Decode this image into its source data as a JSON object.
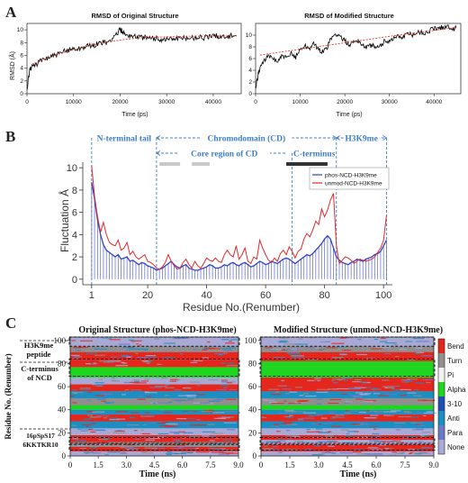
{
  "panels": {
    "a": {
      "letter": "A"
    },
    "b": {
      "letter": "B"
    },
    "c": {
      "letter": "C"
    }
  },
  "chart_data": [
    {
      "type": "line",
      "title": "RMSD of Original Structure",
      "xlabel": "Time (ps)",
      "ylabel": "RMSD (Å)",
      "xlim": [
        0,
        46000
      ],
      "ylim": [
        0,
        11
      ],
      "xticks": [
        "0",
        "10000",
        "20000",
        "30000",
        "40000"
      ],
      "yticks": [
        "0",
        "2",
        "4",
        "6",
        "8",
        "10"
      ],
      "series": [
        {
          "kind": "rmsd",
          "color": "#000000",
          "points": [
            [
              0,
              0.5
            ],
            [
              500,
              3.5
            ],
            [
              1000,
              4.3
            ],
            [
              2000,
              4.6
            ],
            [
              3000,
              5.1
            ],
            [
              4000,
              5.5
            ],
            [
              5000,
              5.8
            ],
            [
              6000,
              6.0
            ],
            [
              7000,
              6.2
            ],
            [
              8000,
              6.6
            ],
            [
              9000,
              6.9
            ],
            [
              10000,
              7.1
            ],
            [
              11000,
              7.0
            ],
            [
              12000,
              7.3
            ],
            [
              13000,
              7.5
            ],
            [
              14000,
              7.4
            ],
            [
              15000,
              7.8
            ],
            [
              16000,
              8.0
            ],
            [
              17000,
              7.9
            ],
            [
              18000,
              8.4
            ],
            [
              19000,
              9.2
            ],
            [
              20000,
              10.0
            ],
            [
              20500,
              9.8
            ],
            [
              21000,
              9.3
            ],
            [
              22000,
              9.2
            ],
            [
              23000,
              9.0
            ],
            [
              24000,
              8.9
            ],
            [
              25000,
              8.8
            ],
            [
              26000,
              8.6
            ],
            [
              27000,
              8.7
            ],
            [
              28000,
              8.6
            ],
            [
              29000,
              8.5
            ],
            [
              30000,
              8.6
            ],
            [
              31000,
              8.6
            ],
            [
              32000,
              8.7
            ],
            [
              33000,
              8.6
            ],
            [
              34000,
              8.7
            ],
            [
              35000,
              8.8
            ],
            [
              36000,
              8.8
            ],
            [
              37000,
              8.9
            ],
            [
              38000,
              8.8
            ],
            [
              39000,
              8.9
            ],
            [
              40000,
              9.0
            ],
            [
              41000,
              9.0
            ],
            [
              42000,
              8.9
            ],
            [
              43000,
              9.0
            ],
            [
              44000,
              9.1
            ],
            [
              45000,
              9.0
            ]
          ]
        },
        {
          "kind": "fit",
          "color": "#e03a2a",
          "points": [
            [
              1000,
              4.6
            ],
            [
              5000,
              5.8
            ],
            [
              10000,
              6.9
            ],
            [
              15000,
              7.8
            ],
            [
              20000,
              8.4
            ],
            [
              25000,
              8.8
            ],
            [
              30000,
              8.9
            ],
            [
              35000,
              9.0
            ],
            [
              40000,
              9.0
            ],
            [
              45000,
              9.1
            ]
          ]
        }
      ]
    },
    {
      "type": "line",
      "title": "RMSD of Modified Structure",
      "xlabel": "Time (ps)",
      "ylabel": "",
      "xlim": [
        0,
        46000
      ],
      "ylim": [
        0,
        12
      ],
      "xticks": [
        "0",
        "10000",
        "20000",
        "30000",
        "40000"
      ],
      "yticks": [
        "0",
        "2",
        "4",
        "6",
        "8",
        "10"
      ],
      "series": [
        {
          "kind": "rmsd",
          "color": "#000000",
          "points": [
            [
              0,
              0.8
            ],
            [
              500,
              3.0
            ],
            [
              1000,
              4.5
            ],
            [
              2000,
              5.8
            ],
            [
              3000,
              6.3
            ],
            [
              4000,
              6.0
            ],
            [
              5000,
              5.5
            ],
            [
              6000,
              6.5
            ],
            [
              7000,
              6.0
            ],
            [
              8000,
              6.8
            ],
            [
              9000,
              6.3
            ],
            [
              10000,
              7.6
            ],
            [
              11000,
              8.2
            ],
            [
              12000,
              7.8
            ],
            [
              13000,
              8.5
            ],
            [
              14000,
              7.6
            ],
            [
              15000,
              7.2
            ],
            [
              16000,
              7.8
            ],
            [
              17000,
              9.5
            ],
            [
              18000,
              10.2
            ],
            [
              19000,
              9.8
            ],
            [
              20000,
              9.0
            ],
            [
              21000,
              8.4
            ],
            [
              22000,
              8.9
            ],
            [
              23000,
              9.2
            ],
            [
              24000,
              8.2
            ],
            [
              25000,
              8.0
            ],
            [
              26000,
              8.3
            ],
            [
              27000,
              7.7
            ],
            [
              28000,
              8.2
            ],
            [
              29000,
              9.0
            ],
            [
              30000,
              9.1
            ],
            [
              31000,
              9.5
            ],
            [
              32000,
              9.9
            ],
            [
              33000,
              9.6
            ],
            [
              34000,
              10.3
            ],
            [
              35000,
              10.0
            ],
            [
              36000,
              10.4
            ],
            [
              37000,
              10.6
            ],
            [
              38000,
              10.3
            ],
            [
              39000,
              10.8
            ],
            [
              40000,
              11.2
            ],
            [
              41000,
              11.0
            ],
            [
              42000,
              11.4
            ],
            [
              43000,
              11.5
            ],
            [
              44000,
              11.1
            ],
            [
              45000,
              11.2
            ]
          ]
        },
        {
          "kind": "fit",
          "color": "#e03a2a",
          "points": [
            [
              1000,
              6.6
            ],
            [
              10000,
              7.6
            ],
            [
              20000,
              8.7
            ],
            [
              30000,
              9.8
            ],
            [
              40000,
              10.8
            ],
            [
              45000,
              11.3
            ]
          ]
        }
      ]
    },
    {
      "type": "line",
      "xlabel": "Residue No.(Renumber)",
      "ylabel": "Fluctuation Å",
      "xlim": [
        -2,
        103
      ],
      "ylim": [
        -0.5,
        10.5
      ],
      "xticks": [
        1,
        20,
        40,
        60,
        80,
        100
      ],
      "yticks": [
        0,
        2,
        4,
        6,
        8,
        10
      ],
      "regions": [
        {
          "label": "N-terminal tail",
          "from": 1,
          "to": 23
        },
        {
          "label": "Chromodomain (CD)",
          "from": 23,
          "to": 84
        },
        {
          "label": "H3K9me",
          "from": 84,
          "to": 101
        },
        {
          "label": "Core region of CD",
          "from": 23,
          "to": 69
        },
        {
          "label": "C-terminus",
          "from": 69,
          "to": 84
        }
      ],
      "marker_bars": [
        {
          "from": 24,
          "to": 31,
          "color": "#c8c8c8"
        },
        {
          "from": 35,
          "to": 41,
          "color": "#c8c8c8"
        },
        {
          "from": 67,
          "to": 81,
          "color": "#333333"
        }
      ],
      "legend": "top-right",
      "series": [
        {
          "name": "phos-NCD-H3K9me",
          "color": "#3340c8",
          "values": [
            8.7,
            7.2,
            5.3,
            4.0,
            3.1,
            2.6,
            2.4,
            2.2,
            2.0,
            2.2,
            1.8,
            1.9,
            2.0,
            1.6,
            1.7,
            1.5,
            1.3,
            1.5,
            1.4,
            1.2,
            1.1,
            1.0,
            0.8,
            0.9,
            1.0,
            1.2,
            1.4,
            1.6,
            1.3,
            1.1,
            1.0,
            1.2,
            1.3,
            1.0,
            0.9,
            0.8,
            0.8,
            0.9,
            1.0,
            1.1,
            1.3,
            1.2,
            1.0,
            1.0,
            1.1,
            1.3,
            1.2,
            1.4,
            1.5,
            1.3,
            1.2,
            1.4,
            1.5,
            1.3,
            1.1,
            1.2,
            1.4,
            1.6,
            1.5,
            1.3,
            1.4,
            1.6,
            1.5,
            1.4,
            1.6,
            1.8,
            1.9,
            1.8,
            1.6,
            1.4,
            1.6,
            1.8,
            2.0,
            2.2,
            2.1,
            2.3,
            2.6,
            2.9,
            3.2,
            3.6,
            3.9,
            3.6,
            2.8,
            2.0,
            1.7,
            1.5,
            1.4,
            1.3,
            1.5,
            1.6,
            1.8,
            1.7,
            1.6,
            1.8,
            1.9,
            2.0,
            2.2,
            2.3,
            2.5,
            3.0,
            3.5
          ]
        },
        {
          "name": "unmod-NCD-H3K9me",
          "color": "#e0282a",
          "values": [
            10.2,
            7.4,
            5.6,
            4.2,
            5.1,
            4.0,
            3.3,
            3.1,
            3.0,
            3.5,
            2.6,
            2.8,
            3.3,
            2.2,
            2.5,
            2.0,
            1.8,
            2.0,
            2.2,
            1.6,
            1.5,
            1.3,
            1.0,
            0.9,
            1.1,
            1.5,
            2.2,
            1.6,
            1.2,
            0.9,
            1.0,
            1.5,
            1.8,
            1.3,
            1.0,
            1.6,
            1.2,
            1.0,
            1.4,
            1.9,
            1.7,
            1.6,
            1.9,
            1.6,
            1.5,
            2.2,
            2.6,
            2.2,
            2.0,
            3.0,
            1.8,
            2.2,
            2.8,
            1.6,
            1.4,
            2.0,
            1.8,
            3.5,
            2.8,
            2.2,
            1.7,
            1.5,
            1.9,
            1.6,
            2.3,
            2.6,
            2.2,
            2.9,
            2.5,
            1.9,
            2.5,
            2.7,
            3.6,
            4.1,
            3.8,
            4.4,
            5.2,
            4.9,
            6.3,
            5.6,
            6.2,
            7.1,
            7.7,
            3.0,
            1.4,
            1.7,
            2.0,
            1.9,
            1.7,
            1.4,
            1.6,
            1.8,
            1.7,
            1.6,
            1.7,
            1.8,
            2.0,
            2.4,
            2.8,
            3.5,
            5.7
          ]
        }
      ]
    },
    {
      "type": "heatmap",
      "title": "Original Structure (phos-NCD-H3K9me)",
      "xlabel": "Time (ns)",
      "ylabel": "Residue No. (Renumber)",
      "xlim": [
        0,
        9
      ],
      "ylim": [
        0,
        103
      ],
      "xticks": [
        "0",
        "1.5",
        "3.0",
        "4.5",
        "6.0",
        "7.5",
        "9.0"
      ],
      "yticks": [
        "0",
        "20",
        "40",
        "60",
        "80",
        "100"
      ],
      "annotations": [
        {
          "line1": "H3K9me",
          "line2": "peptide"
        },
        {
          "line1": "C-terminus",
          "line2": "of NCD"
        },
        {
          "line1": "16pSpS17",
          "line2": "6KKTKR10"
        }
      ],
      "bands": [
        {
          "from": 0,
          "to": 4,
          "state": "None"
        },
        {
          "from": 4,
          "to": 8,
          "state": "Bend"
        },
        {
          "from": 8,
          "to": 12,
          "state": "Turn"
        },
        {
          "from": 12,
          "to": 18,
          "state": "Bend"
        },
        {
          "from": 18,
          "to": 24,
          "state": "None"
        },
        {
          "from": 24,
          "to": 30,
          "state": "Anti"
        },
        {
          "from": 30,
          "to": 36,
          "state": "Bend"
        },
        {
          "from": 36,
          "to": 40,
          "state": "Anti"
        },
        {
          "from": 40,
          "to": 44,
          "state": "Alpha"
        },
        {
          "from": 44,
          "to": 50,
          "state": "Turn"
        },
        {
          "from": 50,
          "to": 56,
          "state": "Anti"
        },
        {
          "from": 56,
          "to": 62,
          "state": "Bend"
        },
        {
          "from": 62,
          "to": 68,
          "state": "None"
        },
        {
          "from": 68,
          "to": 77,
          "state": "Alpha"
        },
        {
          "from": 77,
          "to": 83,
          "state": "Bend"
        },
        {
          "from": 83,
          "to": 90,
          "state": "Bend"
        },
        {
          "from": 90,
          "to": 95,
          "state": "Turn"
        },
        {
          "from": 95,
          "to": 103,
          "state": "None"
        }
      ]
    },
    {
      "type": "heatmap",
      "title": "Modified Structure (unmod-NCD-H3K9me)",
      "xlabel": "Time (ns)",
      "ylabel": "",
      "xlim": [
        0,
        9
      ],
      "ylim": [
        0,
        103
      ],
      "xticks": [
        "0",
        "1.5",
        "3.0",
        "4.5",
        "6.0",
        "7.5",
        "9.0"
      ],
      "yticks": [
        "0",
        "20",
        "40",
        "60",
        "80",
        "100"
      ],
      "legend": {
        "states": [
          "Bend",
          "Turn",
          "Pi",
          "Alpha",
          "3-10",
          "Anti",
          "Para",
          "None"
        ],
        "colors": [
          "#e5261d",
          "#8f8f8f",
          "#f2f2f2",
          "#1ed61e",
          "#1f4fb5",
          "#1a8fc2",
          "#6a78c8",
          "#a9a9d6"
        ]
      },
      "bands": [
        {
          "from": 0,
          "to": 4,
          "state": "None"
        },
        {
          "from": 4,
          "to": 10,
          "state": "Bend"
        },
        {
          "from": 10,
          "to": 14,
          "state": "None"
        },
        {
          "from": 14,
          "to": 18,
          "state": "Bend"
        },
        {
          "from": 18,
          "to": 24,
          "state": "None"
        },
        {
          "from": 24,
          "to": 30,
          "state": "Anti"
        },
        {
          "from": 30,
          "to": 36,
          "state": "Bend"
        },
        {
          "from": 36,
          "to": 40,
          "state": "Anti"
        },
        {
          "from": 40,
          "to": 44,
          "state": "Alpha"
        },
        {
          "from": 44,
          "to": 50,
          "state": "Turn"
        },
        {
          "from": 50,
          "to": 56,
          "state": "Anti"
        },
        {
          "from": 56,
          "to": 62,
          "state": "Bend"
        },
        {
          "from": 62,
          "to": 68,
          "state": "Bend"
        },
        {
          "from": 68,
          "to": 77,
          "state": "Alpha"
        },
        {
          "from": 77,
          "to": 82,
          "state": "Alpha"
        },
        {
          "from": 82,
          "to": 90,
          "state": "Bend"
        },
        {
          "from": 90,
          "to": 95,
          "state": "Turn"
        },
        {
          "from": 95,
          "to": 103,
          "state": "None"
        }
      ]
    }
  ]
}
